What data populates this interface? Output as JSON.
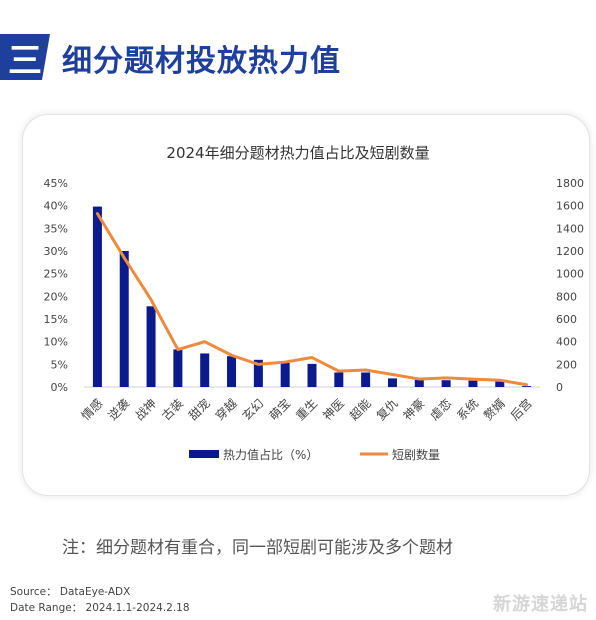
{
  "header": {
    "badge": "三",
    "title": "细分题材投放热力值"
  },
  "chart_data": {
    "type": "bar",
    "title": "2024年细分题材热力值占比及短剧数量",
    "categories": [
      "情感",
      "逆袭",
      "战神",
      "古装",
      "甜宠",
      "穿越",
      "玄幻",
      "萌宝",
      "重生",
      "神医",
      "超能",
      "复仇",
      "神豪",
      "虐恋",
      "系统",
      "赘婿",
      "后宫"
    ],
    "series": [
      {
        "name": "热力值占比（%）",
        "type": "bar",
        "axis": "left",
        "color": "#0b1a8c",
        "values": [
          39.8,
          30.0,
          17.8,
          8.3,
          7.4,
          6.8,
          6.0,
          5.4,
          5.1,
          3.2,
          3.2,
          1.9,
          1.6,
          1.5,
          1.4,
          1.2,
          0.2
        ]
      },
      {
        "name": "短剧数量",
        "type": "line",
        "axis": "right",
        "color": "#ee8a3c",
        "values": [
          1530,
          1140,
          770,
          330,
          400,
          280,
          200,
          220,
          260,
          140,
          150,
          110,
          70,
          80,
          70,
          60,
          20
        ]
      }
    ],
    "left_axis": {
      "ylim": [
        0,
        45
      ],
      "ticks": [
        "0%",
        "5%",
        "10%",
        "15%",
        "20%",
        "25%",
        "30%",
        "35%",
        "40%",
        "45%"
      ]
    },
    "right_axis": {
      "ylim": [
        0,
        1800
      ],
      "ticks": [
        "0",
        "200",
        "400",
        "600",
        "800",
        "1000",
        "1200",
        "1400",
        "1600",
        "1800"
      ]
    },
    "grid": false,
    "legend_position": "bottom",
    "legend": [
      {
        "label": "热力值占比（%）",
        "color": "#0b1a8c"
      },
      {
        "label": "短剧数量",
        "color": "#ee8a3c"
      }
    ]
  },
  "note": "注：细分题材有重合，同一部短剧可能涉及多个题材",
  "footer": {
    "source": "Source：  DataEye-ADX",
    "date_range": "Date Range：  2024.1.1-2024.2.18"
  },
  "watermark": "新游速递站"
}
